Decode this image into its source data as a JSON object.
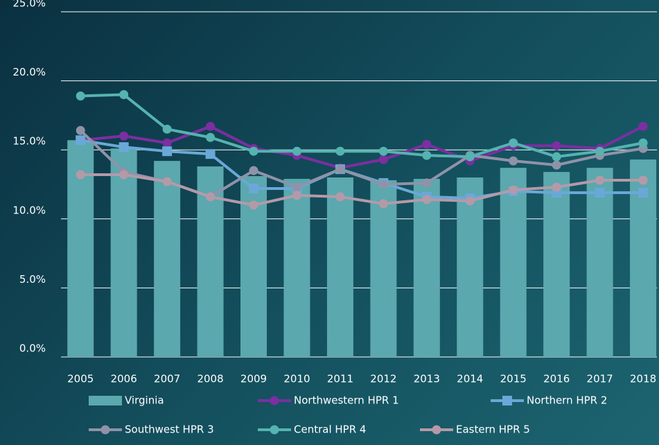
{
  "chart_data": {
    "type": "bar-line",
    "categories": [
      "2005",
      "2006",
      "2007",
      "2008",
      "2009",
      "2010",
      "2011",
      "2012",
      "2013",
      "2014",
      "2015",
      "2016",
      "2017",
      "2018"
    ],
    "ylim": [
      0,
      25
    ],
    "yticks": [
      {
        "value": 0,
        "label": "0.0%"
      },
      {
        "value": 5,
        "label": "5.0%"
      },
      {
        "value": 10,
        "label": "10.0%"
      },
      {
        "value": 15,
        "label": "15.0%"
      },
      {
        "value": 20,
        "label": "20.0%"
      },
      {
        "value": 25,
        "label": "25.0%"
      }
    ],
    "grid": true,
    "legend": "bottom",
    "series": [
      {
        "name": "Virginia",
        "type": "bar",
        "color": "#5ba8ae",
        "values": [
          15.7,
          15.1,
          14.2,
          13.8,
          13.1,
          12.9,
          13.0,
          12.8,
          12.9,
          13.0,
          13.7,
          13.4,
          13.7,
          14.3
        ]
      },
      {
        "name": "Northwestern HPR 1",
        "type": "line",
        "marker": "circle",
        "color": "#7b2fa0",
        "values": [
          15.7,
          16.0,
          15.5,
          16.7,
          15.1,
          14.6,
          13.7,
          14.3,
          15.4,
          14.2,
          15.3,
          15.3,
          15.1,
          16.7
        ]
      },
      {
        "name": "Northern HPR 2",
        "type": "line",
        "marker": "square",
        "color": "#6aa8d8",
        "values": [
          15.7,
          15.2,
          14.9,
          14.7,
          12.2,
          12.2,
          13.6,
          12.6,
          11.6,
          11.5,
          12.0,
          11.9,
          11.9,
          11.9
        ]
      },
      {
        "name": "Southwest HPR 3",
        "type": "line",
        "marker": "circle",
        "color": "#8f93a8",
        "values": [
          16.4,
          13.4,
          12.7,
          11.6,
          13.5,
          12.3,
          13.6,
          12.5,
          12.6,
          14.6,
          14.2,
          13.9,
          14.6,
          15.1
        ]
      },
      {
        "name": "Central HPR 4",
        "type": "line",
        "marker": "circle",
        "color": "#55b3b0",
        "values": [
          18.9,
          19.0,
          16.5,
          15.9,
          14.9,
          14.9,
          14.9,
          14.9,
          14.6,
          14.5,
          15.5,
          14.5,
          14.9,
          15.5
        ]
      },
      {
        "name": "Eastern HPR 5",
        "type": "line",
        "marker": "circle",
        "color": "#b49aa8",
        "values": [
          13.2,
          13.2,
          12.7,
          11.6,
          11.0,
          11.7,
          11.6,
          11.1,
          11.4,
          11.3,
          12.1,
          12.3,
          12.8,
          12.8
        ]
      }
    ]
  }
}
